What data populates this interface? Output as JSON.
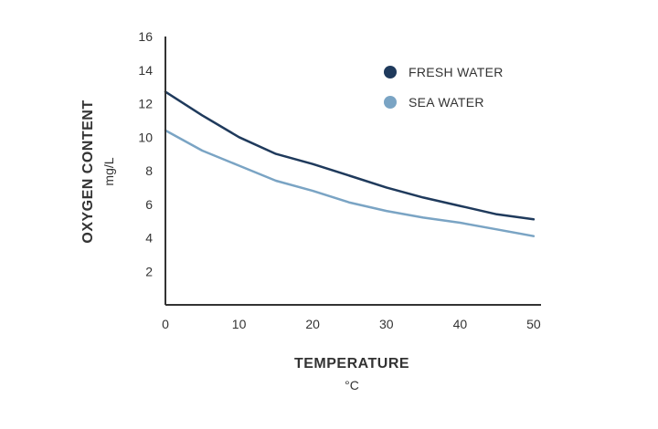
{
  "chart_data": {
    "type": "line",
    "title": "",
    "xlabel": "TEMPERATURE",
    "xunit": "°C",
    "ylabel": "OXYGEN CONTENT",
    "yunit": "mg/L",
    "xlim": [
      0,
      51
    ],
    "ylim": [
      0,
      16
    ],
    "xticks": [
      0,
      10,
      20,
      30,
      40,
      50
    ],
    "yticks": [
      2,
      4,
      6,
      8,
      10,
      12,
      14,
      16
    ],
    "grid": false,
    "legend_position": "top-right",
    "series": [
      {
        "name": "FRESH WATER",
        "color": "#1f3a5c",
        "x": [
          0,
          5,
          10,
          15,
          20,
          25,
          30,
          35,
          40,
          45,
          50
        ],
        "y": [
          12.7,
          11.3,
          10.0,
          9.0,
          8.4,
          7.7,
          7.0,
          6.4,
          5.9,
          5.4,
          5.1
        ]
      },
      {
        "name": "SEA WATER",
        "color": "#7aa4c4",
        "x": [
          0,
          5,
          10,
          15,
          20,
          25,
          30,
          35,
          40,
          45,
          50
        ],
        "y": [
          10.4,
          9.2,
          8.3,
          7.4,
          6.8,
          6.1,
          5.6,
          5.2,
          4.9,
          4.5,
          4.1
        ]
      }
    ]
  }
}
